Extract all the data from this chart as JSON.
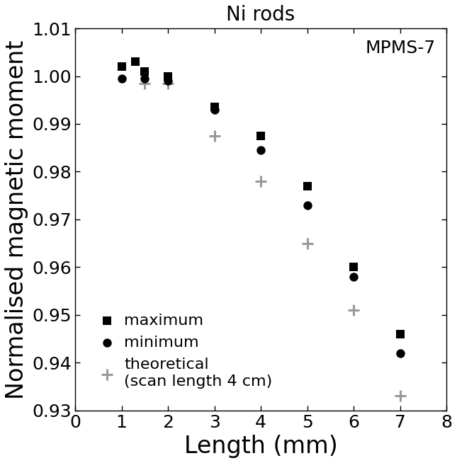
{
  "title": "Ni rods",
  "xlabel": "Length (mm)",
  "ylabel": "Normalised magnetic moment",
  "annotation": "MPMS-7",
  "xlim": [
    0,
    8
  ],
  "ylim": [
    0.93,
    1.01
  ],
  "yticks": [
    0.93,
    0.94,
    0.95,
    0.96,
    0.97,
    0.98,
    0.99,
    1.0,
    1.01
  ],
  "xticks": [
    0,
    1,
    2,
    3,
    4,
    5,
    6,
    7,
    8
  ],
  "maximum_x": [
    1.0,
    1.3,
    1.5,
    2.0,
    3.0,
    4.0,
    5.0,
    6.0,
    7.0
  ],
  "maximum_y": [
    1.002,
    1.003,
    1.001,
    1.0,
    0.9935,
    0.9875,
    0.977,
    0.96,
    0.946
  ],
  "minimum_x": [
    1.0,
    1.5,
    2.0,
    3.0,
    4.0,
    5.0,
    6.0,
    7.0
  ],
  "minimum_y": [
    0.9995,
    0.9995,
    0.999,
    0.993,
    0.9845,
    0.973,
    0.958,
    0.942
  ],
  "theoretical_x": [
    1.5,
    2.0,
    3.0,
    4.0,
    5.0,
    6.0,
    7.0
  ],
  "theoretical_y": [
    0.9985,
    0.9985,
    0.9875,
    0.978,
    0.965,
    0.951,
    0.933
  ],
  "max_color": "#000000",
  "min_color": "#000000",
  "theory_color": "#999999",
  "title_fontsize": 20,
  "label_fontsize": 24,
  "tick_fontsize": 18,
  "annotation_fontsize": 18,
  "legend_fontsize": 16
}
